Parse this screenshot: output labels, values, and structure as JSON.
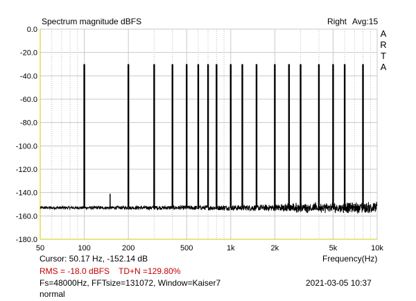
{
  "header": {
    "title": "Spectrum magnitude dBFS",
    "channel": "Right",
    "avg": "Avg:15"
  },
  "brand": [
    "A",
    "R",
    "T",
    "A"
  ],
  "footer": {
    "cursor": "Cursor: 50.17 Hz, -152.14 dB",
    "xlabel": "Frequency(Hz)",
    "rms": "RMS =  -18.0 dBFS",
    "tdn": "TD+N =129.80%",
    "params": "Fs=48000Hz, FFTsize=131072, Window=Kaiser7",
    "datetime": "2021-03-05  10:37",
    "mode": "normal"
  },
  "colors": {
    "grid_major": "#c8c8c8",
    "grid_minor": "#b8b8b8",
    "axis": "#cccc00",
    "trace": "#000000",
    "text_red": "#c00000"
  },
  "chart_data": {
    "type": "line",
    "x_scale": "log",
    "xlim": [
      50,
      10000
    ],
    "ylim": [
      -180,
      0
    ],
    "grid": true,
    "x_ticks": [
      {
        "v": 50,
        "label": "50"
      },
      {
        "v": 100,
        "label": "100"
      },
      {
        "v": 200,
        "label": "200"
      },
      {
        "v": 500,
        "label": "500"
      },
      {
        "v": 1000,
        "label": "1k"
      },
      {
        "v": 2000,
        "label": "2k"
      },
      {
        "v": 5000,
        "label": "5k"
      },
      {
        "v": 10000,
        "label": "10k"
      }
    ],
    "y_ticks": [
      {
        "v": 0,
        "label": "0.0"
      },
      {
        "v": -20,
        "label": "-20.0"
      },
      {
        "v": -40,
        "label": "-40.0"
      },
      {
        "v": -60,
        "label": "-60.0"
      },
      {
        "v": -80,
        "label": "-80.0"
      },
      {
        "v": -100,
        "label": "-100.0"
      },
      {
        "v": -120,
        "label": "-120.0"
      },
      {
        "v": -140,
        "label": "-140.0"
      },
      {
        "v": -160,
        "label": "-160.0"
      },
      {
        "v": -180,
        "label": "-180.0"
      }
    ],
    "noise_floor_db": -153,
    "peaks": [
      {
        "freq": 100,
        "db": -30
      },
      {
        "freq": 150,
        "db": -141
      },
      {
        "freq": 200,
        "db": -30
      },
      {
        "freq": 300,
        "db": -30
      },
      {
        "freq": 400,
        "db": -30
      },
      {
        "freq": 500,
        "db": -30
      },
      {
        "freq": 600,
        "db": -30
      },
      {
        "freq": 700,
        "db": -30
      },
      {
        "freq": 800,
        "db": -30
      },
      {
        "freq": 1000,
        "db": -30
      },
      {
        "freq": 1200,
        "db": -30
      },
      {
        "freq": 1500,
        "db": -30
      },
      {
        "freq": 2000,
        "db": -30
      },
      {
        "freq": 2500,
        "db": -30
      },
      {
        "freq": 3000,
        "db": -30
      },
      {
        "freq": 4000,
        "db": -30
      },
      {
        "freq": 5000,
        "db": -30
      },
      {
        "freq": 6000,
        "db": -30
      },
      {
        "freq": 8000,
        "db": -30
      }
    ]
  }
}
